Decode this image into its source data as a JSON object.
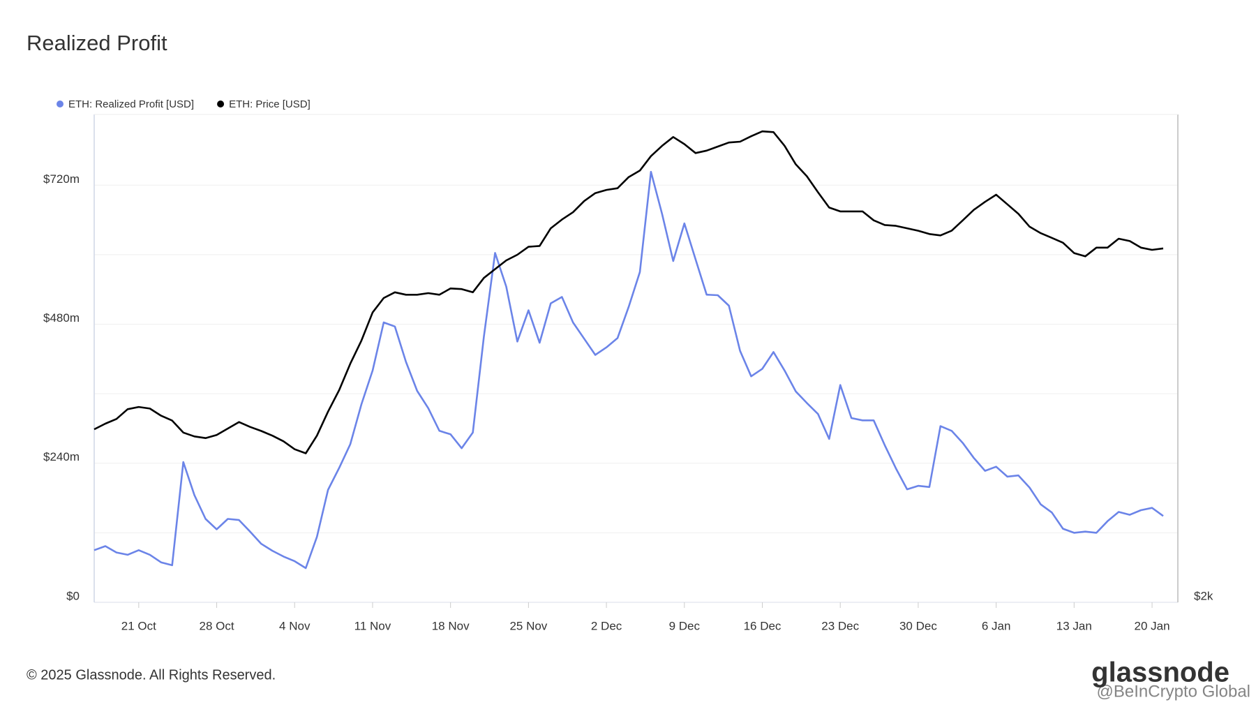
{
  "chart_data": {
    "type": "line",
    "title": "Realized Profit",
    "categories": [
      null,
      null,
      null,
      null,
      "21 Oct",
      null,
      null,
      null,
      null,
      null,
      null,
      "28 Oct",
      null,
      null,
      null,
      null,
      null,
      null,
      "4 Nov",
      null,
      null,
      null,
      null,
      null,
      null,
      "11 Nov",
      null,
      null,
      null,
      null,
      null,
      null,
      "18 Nov",
      null,
      null,
      null,
      null,
      null,
      null,
      "25 Nov",
      null,
      null,
      null,
      null,
      null,
      null,
      "2 Dec",
      null,
      null,
      null,
      null,
      null,
      null,
      "9 Dec",
      null,
      null,
      null,
      null,
      null,
      null,
      "16 Dec",
      null,
      null,
      null,
      null,
      null,
      null,
      "23 Dec",
      null,
      null,
      null,
      null,
      null,
      null,
      "30 Dec",
      null,
      null,
      null,
      null,
      null,
      null,
      "6 Jan",
      null,
      null,
      null,
      null,
      null,
      null,
      "13 Jan",
      null,
      null,
      null,
      null,
      null,
      null,
      "20 Jan",
      null
    ],
    "series": [
      {
        "name": "ETH: Realized Profit [USD]",
        "color": "#6b84e8",
        "axis": "y",
        "values": [
          90,
          97,
          86,
          82,
          90,
          82,
          69,
          64,
          242,
          185,
          144,
          126,
          144,
          142,
          122,
          101,
          89,
          79,
          71,
          59,
          113,
          194,
          232,
          273,
          342,
          400,
          483,
          476,
          415,
          365,
          335,
          296,
          290,
          266,
          293,
          459,
          603,
          545,
          450,
          504,
          448,
          516,
          527,
          483,
          455,
          427,
          440,
          456,
          510,
          570,
          743,
          670,
          589,
          654,
          592,
          531,
          530,
          512,
          434,
          390,
          403,
          432,
          400,
          364,
          344,
          325,
          282,
          375,
          318,
          314,
          314,
          271,
          231,
          195,
          201,
          199,
          304,
          296,
          275,
          249,
          227,
          234,
          217,
          219,
          198,
          169,
          155,
          127,
          120,
          122,
          120,
          140,
          156,
          151,
          159,
          163,
          149
        ]
      },
      {
        "name": "ETH: Price [USD]",
        "color": "#000000",
        "axis": "y2",
        "values": [
          2851,
          2879,
          2902,
          2950,
          2961,
          2953,
          2918,
          2894,
          2835,
          2816,
          2808,
          2823,
          2855,
          2887,
          2863,
          2843,
          2820,
          2792,
          2753,
          2733,
          2820,
          2938,
          3044,
          3174,
          3288,
          3426,
          3497,
          3525,
          3513,
          3513,
          3521,
          3513,
          3544,
          3541,
          3525,
          3596,
          3639,
          3682,
          3710,
          3749,
          3753,
          3840,
          3883,
          3919,
          3974,
          4013,
          4029,
          4037,
          4092,
          4124,
          4195,
          4246,
          4289,
          4254,
          4210,
          4222,
          4242,
          4262,
          4266,
          4293,
          4317,
          4313,
          4246,
          4155,
          4096,
          4017,
          3942,
          3923,
          3923,
          3923,
          3879,
          3856,
          3852,
          3840,
          3828,
          3812,
          3805,
          3828,
          3879,
          3931,
          3970,
          4005,
          3958,
          3911,
          3848,
          3816,
          3793,
          3769,
          3718,
          3702,
          3745,
          3745,
          3789,
          3777,
          3745,
          3734,
          3741
        ]
      }
    ],
    "ylim": [
      0,
      842
    ],
    "yticks": [
      {
        "value": 0,
        "label": "$0"
      },
      {
        "value": 240,
        "label": "$240m"
      },
      {
        "value": 480,
        "label": "$480m"
      },
      {
        "value": 720,
        "label": "$720m"
      }
    ],
    "minor_yticks": [
      120,
      360,
      600
    ],
    "y2lim": [
      2000,
      4400
    ],
    "y2ticks": [
      {
        "value": 2000,
        "label": "$2k"
      }
    ],
    "grid": true,
    "legend": "top-left",
    "footer": "© 2025 Glassnode. All Rights Reserved.",
    "brand": "glassnode",
    "watermark": "@BeInCrypto Global"
  }
}
